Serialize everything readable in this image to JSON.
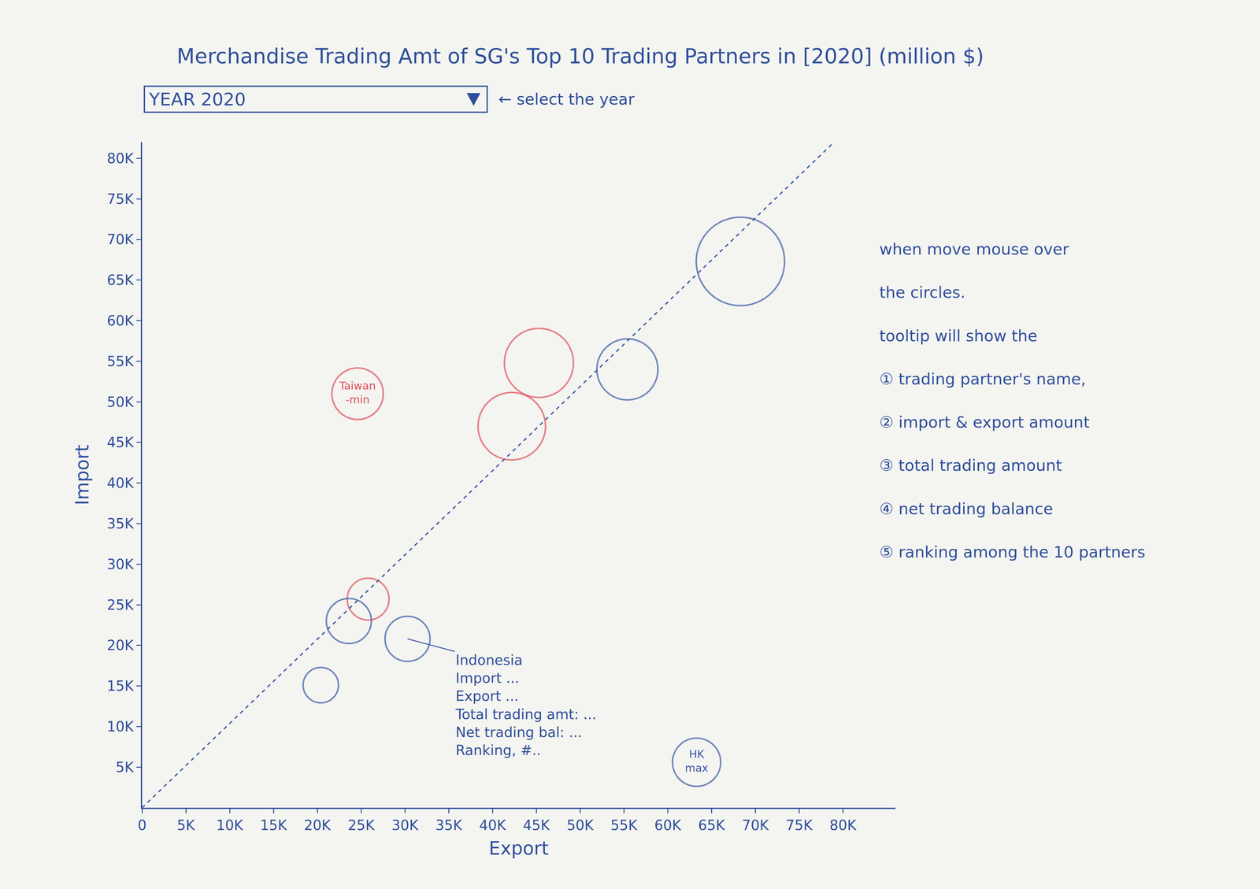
{
  "chart_data": {
    "type": "scatter",
    "title": "Merchandise Trading Amt of SG's Top 10 Trading Partners in [2020] (million $)",
    "selector": {
      "text": "YEAR 2020",
      "hint": "← select the year"
    },
    "x_label": "Export",
    "y_label": "Import",
    "xlim": [
      0,
      86000
    ],
    "ylim": [
      0,
      82000
    ],
    "xticks": [
      0,
      {
        "value": 5000,
        "label": "5K"
      },
      {
        "value": 10000,
        "label": "10K"
      },
      {
        "value": 15000,
        "label": "15K"
      },
      {
        "value": 20000,
        "label": "20K"
      },
      {
        "value": 25000,
        "label": "25K"
      },
      {
        "value": 30000,
        "label": "30K"
      },
      {
        "value": 35000,
        "label": "35K"
      },
      {
        "value": 40000,
        "label": "40K"
      },
      {
        "value": 45000,
        "label": "45K"
      },
      {
        "value": 50000,
        "label": "50K"
      },
      {
        "value": 55000,
        "label": "55K"
      },
      {
        "value": 60000,
        "label": "60K"
      },
      {
        "value": 65000,
        "label": "65K"
      },
      {
        "value": 70000,
        "label": "70K"
      },
      {
        "value": 75000,
        "label": "75K"
      },
      {
        "value": 80000,
        "label": "80K"
      }
    ],
    "yticks": [
      {
        "value": 5000,
        "label": "5K"
      },
      {
        "value": 10000,
        "label": "10K"
      },
      {
        "value": 15000,
        "label": "15K"
      },
      {
        "value": 20000,
        "label": "20K"
      },
      {
        "value": 25000,
        "label": "25K"
      },
      {
        "value": 30000,
        "label": "30K"
      },
      {
        "value": 35000,
        "label": "35K"
      },
      {
        "value": 40000,
        "label": "40K"
      },
      {
        "value": 45000,
        "label": "45K"
      },
      {
        "value": 50000,
        "label": "50K"
      },
      {
        "value": 55000,
        "label": "55K"
      },
      {
        "value": 60000,
        "label": "60K"
      },
      {
        "value": 65000,
        "label": "65K"
      },
      {
        "value": 70000,
        "label": "70K"
      },
      {
        "value": 75000,
        "label": "75K"
      },
      {
        "value": 80000,
        "label": "80K"
      }
    ],
    "grid": false,
    "series": [
      {
        "type": "bubble",
        "marker": "open circle",
        "x": [
          68300,
          55400,
          45300,
          42200,
          24600,
          25800,
          23600,
          30300,
          20400,
          63300
        ],
        "y": [
          67300,
          54000,
          54800,
          47000,
          51000,
          25700,
          23000,
          20800,
          15100,
          5600
        ],
        "sizes": [
          55,
          38,
          43,
          42,
          32,
          26,
          28,
          28,
          22,
          30
        ],
        "colors": [
          "#3b5ba5",
          "#3b5ba5",
          "#e0505c",
          "#e0505c",
          "#e0505c",
          "#e0505c",
          "#3b5ba5",
          "#3b5ba5",
          "#3b5ba5",
          "#3b5ba5"
        ],
        "labels": [
          null,
          null,
          null,
          null,
          "Taiwan -min",
          null,
          null,
          null,
          null,
          "HK max"
        ],
        "tooltip": {
          "index": 7,
          "lines": [
            "Indonesia",
            "Import ...",
            "Export ...",
            "Total trading amt: ...",
            "Net trading bal: ...",
            "Ranking, #.."
          ]
        }
      },
      {
        "type": "line",
        "line_style": "dash",
        "color": "#3b5ba5",
        "x": [
          0,
          79000
        ],
        "y": [
          0,
          82000
        ]
      }
    ],
    "note": [
      "when move mouse over",
      "the circles.",
      "tooltip will show the",
      "① trading partner's name,",
      "② import & export amount",
      "③ total trading amount",
      "④ net trading balance",
      "⑤ ranking among the 10 partners"
    ]
  }
}
